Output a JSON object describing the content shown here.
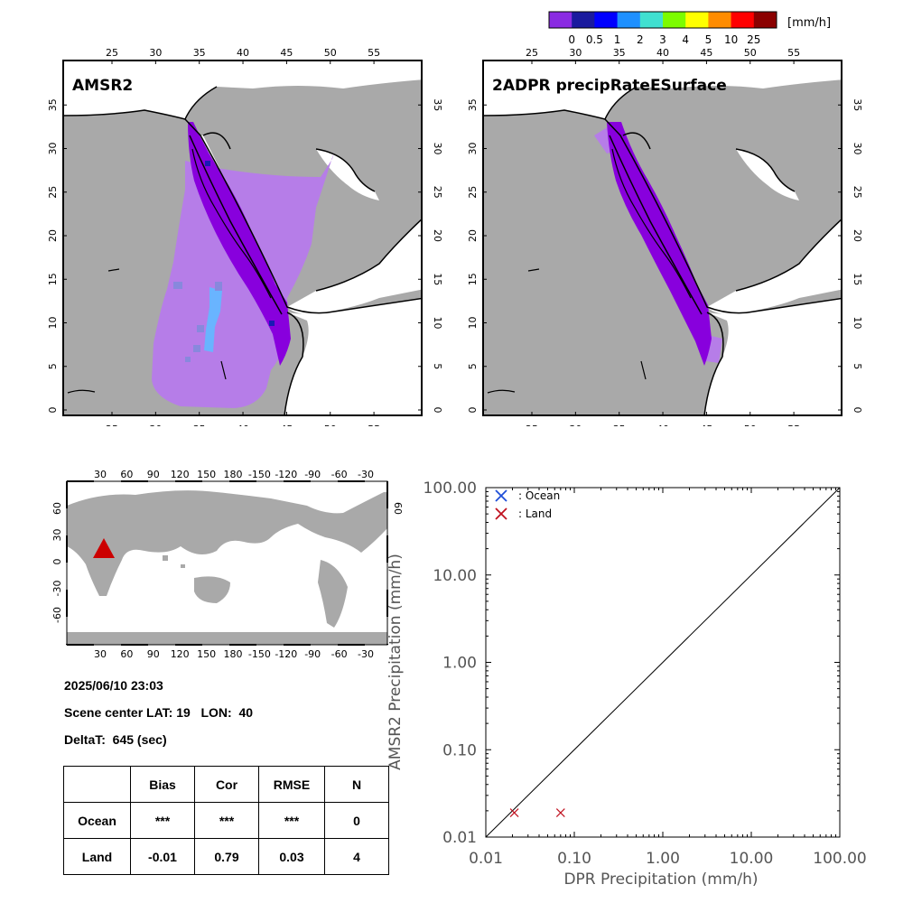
{
  "colorbar": {
    "unit": "[mm/h]",
    "labels": [
      "0",
      "0.5",
      "1",
      "2",
      "3",
      "4",
      "5",
      "10",
      "25"
    ],
    "colors": [
      "#8a2be2",
      "#1a1a9e",
      "#0000ff",
      "#1e90ff",
      "#40e0d0",
      "#7cfc00",
      "#ffff00",
      "#ff8c00",
      "#ff0000",
      "#8b0000"
    ]
  },
  "maps": {
    "left_title": "AMSR2",
    "right_title": "2ADPR precipRateESurface",
    "lon_ticks": [
      "25",
      "30",
      "35",
      "40",
      "45",
      "50",
      "55"
    ],
    "lat_ticks": [
      "0",
      "5",
      "10",
      "15",
      "20",
      "25",
      "30",
      "35"
    ],
    "colors": {
      "land": "#a9a9a9",
      "sea": "#ffffff",
      "light_precip": "#b67de8",
      "precip": "#8800dd",
      "moderate_precip": "#1a1ab4",
      "heavier_precip": "#69b4ff"
    }
  },
  "globe": {
    "top_ticks": [
      "30",
      "60",
      "90",
      "120",
      "150",
      "180",
      "-150",
      "-120",
      "-90",
      "-60",
      "-30"
    ],
    "bottom_ticks": [
      "30",
      "60",
      "90",
      "120",
      "150",
      "180",
      "-150",
      "-120",
      "-90",
      "-60",
      "-30"
    ],
    "lat_ticks_left": [
      "60",
      "30",
      "0",
      "-30",
      "-60"
    ],
    "lat_ticks_right": [
      "60"
    ],
    "marker_color": "#cc0000"
  },
  "info": {
    "datetime": "2025/06/10 23:03",
    "center": "Scene center LAT: 19   LON:  40",
    "deltat": "DeltaT:  645 (sec)"
  },
  "stats": {
    "headers": [
      "",
      "Bias",
      "Cor",
      "RMSE",
      "N"
    ],
    "rows": [
      {
        "label": "Ocean",
        "bias": "***",
        "cor": "***",
        "rmse": "***",
        "n": "0"
      },
      {
        "label": "Land",
        "bias": "-0.01",
        "cor": "0.79",
        "rmse": "0.03",
        "n": "4"
      }
    ]
  },
  "chart_data": {
    "type": "scatter",
    "xscale": "log",
    "yscale": "log",
    "xlim": [
      0.01,
      100
    ],
    "ylim": [
      0.01,
      100
    ],
    "xlabel": "DPR Precipitation (mm/h)",
    "ylabel": "AMSR2 Precipitation (mm/h)",
    "tick_labels": [
      "0.01",
      "0.10",
      "1.00",
      "10.00",
      "100.00"
    ],
    "diagonal": true,
    "legend_position": "top-left",
    "series": [
      {
        "name": ": Ocean",
        "color": "#1f4fd8",
        "marker": "x",
        "points": []
      },
      {
        "name": ": Land",
        "color": "#c0111f",
        "marker": "x",
        "points": [
          [
            0.021,
            0.019
          ],
          [
            0.07,
            0.019
          ]
        ]
      }
    ]
  }
}
